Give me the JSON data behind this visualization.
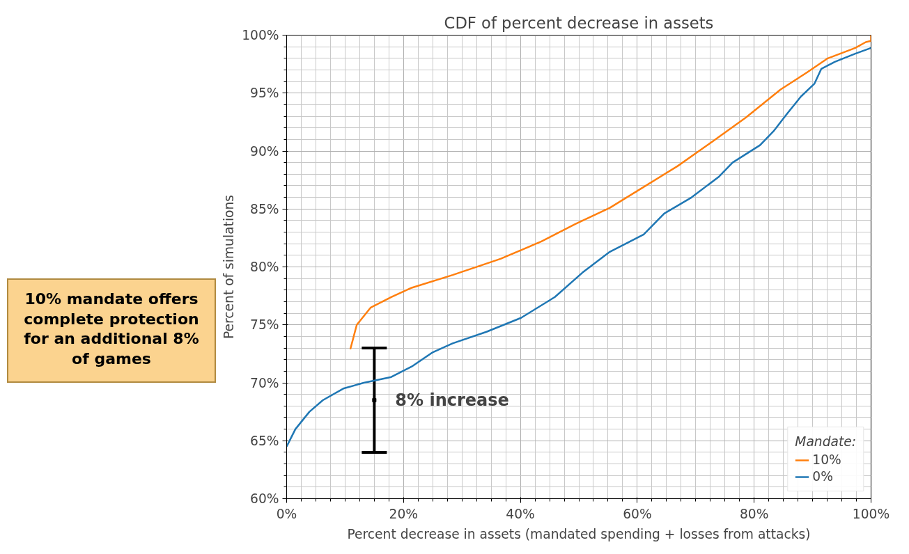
{
  "chart_data": {
    "type": "line",
    "title": "CDF of percent decrease in assets",
    "xlabel": "Percent decrease in assets (mandated spending + losses from attacks)",
    "ylabel": "Percent of simulations",
    "legend_title": "Mandate:",
    "legend": "bottom right",
    "grid": true,
    "xlim": [
      0,
      100
    ],
    "ylim": [
      60,
      100
    ],
    "xticks": [
      {
        "value": 0,
        "label": "0%"
      },
      {
        "value": 20,
        "label": "20%"
      },
      {
        "value": 40,
        "label": "40%"
      },
      {
        "value": 60,
        "label": "60%"
      },
      {
        "value": 80,
        "label": "80%"
      },
      {
        "value": 100,
        "label": "100%"
      }
    ],
    "yticks": [
      {
        "value": 60,
        "label": "60%"
      },
      {
        "value": 65,
        "label": "65%"
      },
      {
        "value": 70,
        "label": "70%"
      },
      {
        "value": 75,
        "label": "75%"
      },
      {
        "value": 80,
        "label": "80%"
      },
      {
        "value": 85,
        "label": "85%"
      },
      {
        "value": 90,
        "label": "90%"
      },
      {
        "value": 95,
        "label": "95%"
      },
      {
        "value": 100,
        "label": "100%"
      }
    ],
    "series": [
      {
        "name": "10%",
        "color": "#ff7f0e",
        "x": [
          10.9,
          12,
          14.4,
          17.9,
          21.4,
          28.4,
          36.6,
          43.6,
          49.4,
          55.3,
          61.1,
          66.9,
          72.8,
          78.6,
          84.5,
          89.1,
          92.6,
          97.3,
          99.1,
          100,
          100
        ],
        "values": [
          72.9,
          75.0,
          76.5,
          77.4,
          78.2,
          79.3,
          80.7,
          82.2,
          83.7,
          85.1,
          86.9,
          88.7,
          90.8,
          92.9,
          95.3,
          96.8,
          98.0,
          98.9,
          99.4,
          99.5,
          100
        ]
      },
      {
        "type": "scatter",
        "marker": "square",
        "color": "#000000",
        "x": [
          15
        ],
        "values": [
          68.5
        ],
        "errors": [
          [
            64,
            73
          ]
        ]
      },
      {
        "name": "0%",
        "color": "#1f77b4",
        "x": [
          0,
          1.5,
          3.9,
          6.2,
          9.7,
          13.2,
          17.9,
          21.4,
          24.9,
          28.4,
          34.2,
          40.1,
          45.9,
          50.6,
          55.3,
          61.1,
          64.6,
          69.3,
          74.0,
          76.3,
          81.0,
          83.3,
          85.6,
          88.0,
          90.3,
          91.5,
          93.8,
          97.3,
          100
        ],
        "values": [
          64.5,
          66.0,
          67.5,
          68.5,
          69.5,
          70.0,
          70.5,
          71.4,
          72.6,
          73.4,
          74.4,
          75.6,
          77.4,
          79.5,
          81.3,
          82.8,
          84.6,
          86.0,
          87.8,
          89.0,
          90.5,
          91.7,
          93.2,
          94.7,
          95.8,
          97.1,
          97.7,
          98.4,
          98.9
        ]
      }
    ],
    "annotations": [
      {
        "text": "8% increase",
        "x": 15,
        "y": 68.5
      },
      "10% mandate offers complete protection for an additional 8% of games"
    ]
  }
}
